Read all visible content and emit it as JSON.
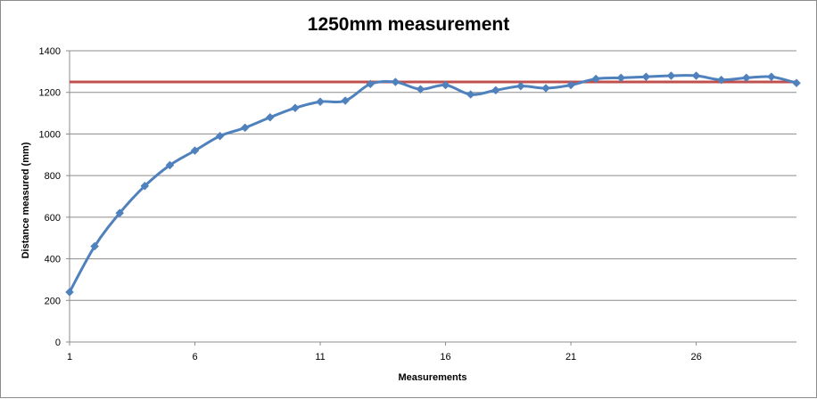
{
  "chart_data": {
    "type": "line",
    "title": "1250mm measurement",
    "xlabel": "Measurements",
    "ylabel": "Distance measured (mm)",
    "xlim": [
      1,
      30
    ],
    "ylim": [
      0,
      1400
    ],
    "x_ticks": [
      1,
      6,
      11,
      16,
      21,
      26
    ],
    "y_ticks": [
      0,
      200,
      400,
      600,
      800,
      1000,
      1200,
      1400
    ],
    "grid": "horizontal",
    "legend": "none",
    "series": [
      {
        "color": "#4f81bd",
        "marker": "diamond",
        "smooth": true,
        "x": [
          1,
          2,
          3,
          4,
          5,
          6,
          7,
          8,
          9,
          10,
          11,
          12,
          13,
          14,
          15,
          16,
          17,
          18,
          19,
          20,
          21,
          22,
          23,
          24,
          25,
          26,
          27,
          28,
          29,
          30
        ],
        "values": [
          240,
          460,
          620,
          750,
          850,
          920,
          990,
          1030,
          1080,
          1125,
          1155,
          1160,
          1240,
          1250,
          1215,
          1235,
          1190,
          1210,
          1230,
          1220,
          1235,
          1265,
          1270,
          1275,
          1280,
          1280,
          1260,
          1270,
          1275,
          1245
        ]
      }
    ],
    "reference_lines": [
      {
        "y": 1250,
        "color": "#c0504d"
      }
    ]
  }
}
